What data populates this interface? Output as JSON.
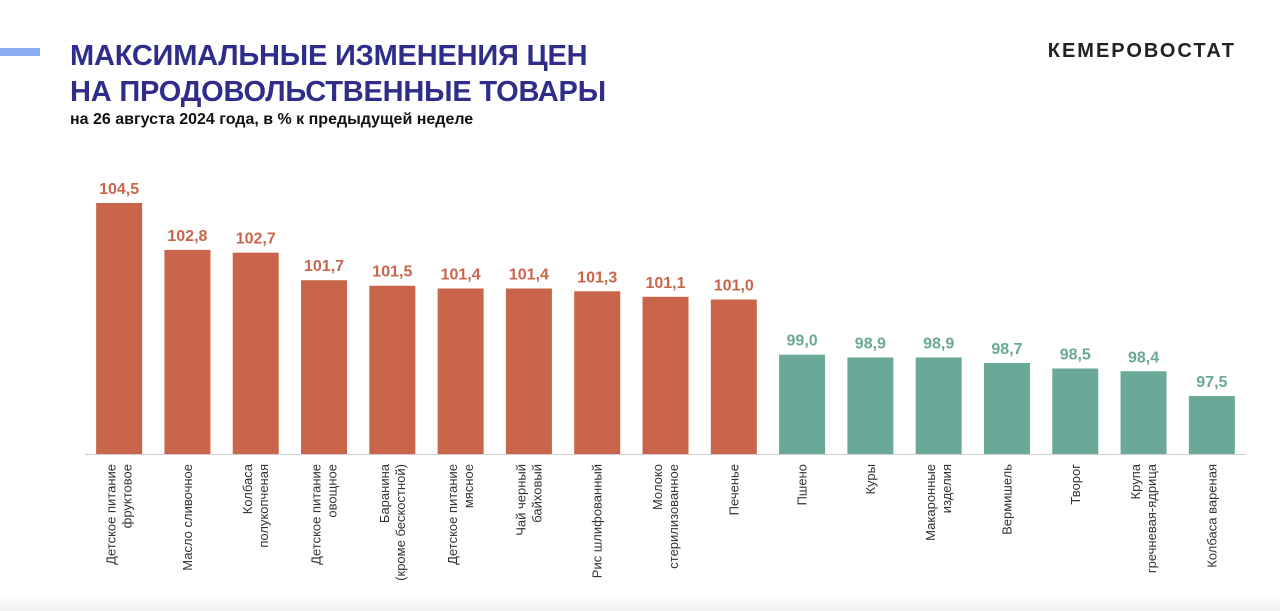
{
  "header": {
    "title_line1": "МАКСИМАЛЬНЫЕ ИЗМЕНЕНИЯ ЦЕН",
    "title_line2": "НА ПРОДОВОЛЬСТВЕННЫЕ ТОВАРЫ",
    "subtitle": "на 26 августа 2024 года, в % к предыдущей неделе",
    "brand": "КЕМЕРОВОСТАТ"
  },
  "colors": {
    "increase": "#c8654a",
    "decrease": "#6aa898",
    "title": "#2e2e8a",
    "accent": "#8aaef0"
  },
  "chart_data": {
    "type": "bar",
    "categories": [
      [
        "Детское питание",
        "фруктовое"
      ],
      [
        "Масло сливочное"
      ],
      [
        "Колбаса",
        "полукопченая"
      ],
      [
        "Детское питание",
        "овощное"
      ],
      [
        "Баранина",
        "(кроме бескостной)"
      ],
      [
        "Детское питание",
        "мясное"
      ],
      [
        "Чай черный",
        "байховый"
      ],
      [
        "Рис шлифованный"
      ],
      [
        "Молоко",
        "стерилизованное"
      ],
      [
        "Печенье"
      ],
      [
        "Пшено"
      ],
      [
        "Куры"
      ],
      [
        "Макаронные",
        "изделия"
      ],
      [
        "Вермишель"
      ],
      [
        "Творог"
      ],
      [
        "Крупа",
        "гречневая-ядрица"
      ],
      [
        "Колбаса вареная"
      ]
    ],
    "values": [
      104.5,
      102.8,
      102.7,
      101.7,
      101.5,
      101.4,
      101.4,
      101.3,
      101.1,
      101.0,
      99.0,
      98.9,
      98.9,
      98.7,
      98.5,
      98.4,
      97.5
    ],
    "value_labels": [
      "104,5",
      "102,8",
      "102,7",
      "101,7",
      "101,5",
      "101,4",
      "101,4",
      "101,3",
      "101,1",
      "101,0",
      "99,0",
      "98,9",
      "98,9",
      "98,7",
      "98,5",
      "98,4",
      "97,5"
    ],
    "baseline": 95.4,
    "threshold": 100,
    "grid": false,
    "legend": "none"
  }
}
